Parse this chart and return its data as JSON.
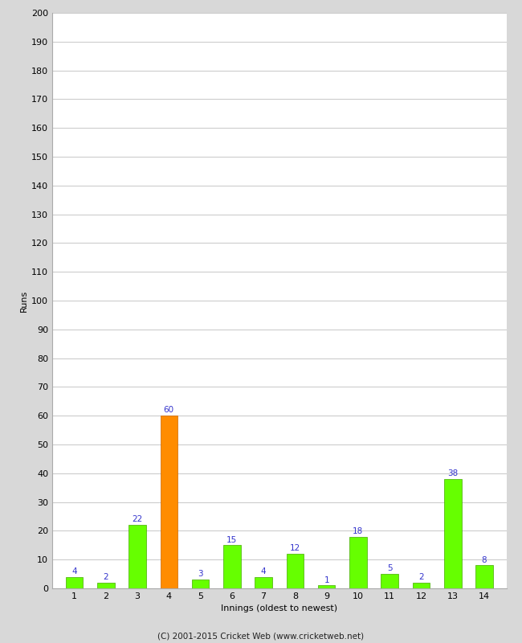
{
  "innings": [
    1,
    2,
    3,
    4,
    5,
    6,
    7,
    8,
    9,
    10,
    11,
    12,
    13,
    14
  ],
  "runs": [
    4,
    2,
    22,
    60,
    3,
    15,
    4,
    12,
    1,
    18,
    5,
    2,
    38,
    8
  ],
  "bar_colors": [
    "#66ff00",
    "#66ff00",
    "#66ff00",
    "#ff8c00",
    "#66ff00",
    "#66ff00",
    "#66ff00",
    "#66ff00",
    "#66ff00",
    "#66ff00",
    "#66ff00",
    "#66ff00",
    "#66ff00",
    "#66ff00"
  ],
  "ylabel": "Runs",
  "xlabel": "Innings (oldest to newest)",
  "ylim": [
    0,
    200
  ],
  "yticks": [
    0,
    10,
    20,
    30,
    40,
    50,
    60,
    70,
    80,
    90,
    100,
    110,
    120,
    130,
    140,
    150,
    160,
    170,
    180,
    190,
    200
  ],
  "label_color": "#3333cc",
  "label_fontsize": 7.5,
  "tick_fontsize": 8,
  "axis_label_fontsize": 8,
  "plot_bg_color": "#ffffff",
  "fig_bg_color": "#d8d8d8",
  "footer_text": "(C) 2001-2015 Cricket Web (www.cricketweb.net)",
  "footer_fontsize": 7.5,
  "grid_color": "#cccccc",
  "bar_width": 0.55
}
